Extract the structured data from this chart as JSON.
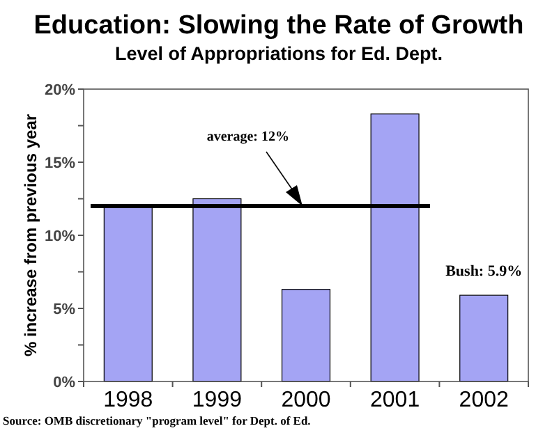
{
  "chart_data": {
    "type": "bar",
    "title": "Education: Slowing the Rate of Growth",
    "subtitle": "Level of Appropriations for Ed. Dept.",
    "ylabel": "% increase from previous year",
    "categories": [
      "1998",
      "1999",
      "2000",
      "2001",
      "2002"
    ],
    "values": [
      12,
      12.5,
      6.3,
      18.3,
      5.9
    ],
    "color": "#a4a4f4",
    "ylim": [
      0,
      20
    ],
    "yticks": [
      {
        "value": 0,
        "label": "0%"
      },
      {
        "value": 2.5,
        "label": null
      },
      {
        "value": 5,
        "label": "5%"
      },
      {
        "value": 7.5,
        "label": null
      },
      {
        "value": 10,
        "label": "10%"
      },
      {
        "value": 12.5,
        "label": null
      },
      {
        "value": 15,
        "label": "15%"
      },
      {
        "value": 17.5,
        "label": null
      },
      {
        "value": 20,
        "label": "20%"
      }
    ],
    "grid": false,
    "ref_lines": [
      {
        "axis": "y",
        "value": 12,
        "label": "average: 12%",
        "color": "#000000"
      }
    ],
    "annotations": [
      {
        "text": "Bush: 5.9%",
        "x": "2002",
        "y": 5.9
      },
      "Source: OMB discretionary \"program level\" for Dept. of Ed."
    ]
  }
}
